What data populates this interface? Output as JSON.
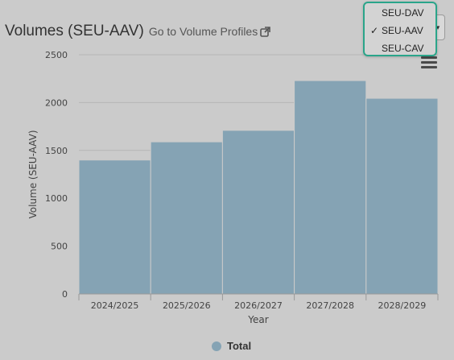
{
  "header": {
    "title": "Volumes (SEU-AAV)",
    "link_text": "Go to Volume Profiles"
  },
  "dropdown": {
    "options": [
      {
        "label": "SEU-DAV",
        "selected": false
      },
      {
        "label": "SEU-AAV",
        "selected": true
      },
      {
        "label": "SEU-CAV",
        "selected": false
      }
    ],
    "check_glyph": "✓",
    "border_color": "#2aa58a"
  },
  "legend": {
    "label": "Total"
  },
  "colors": {
    "series": "#85a3b4",
    "background": "#cbcbcb"
  },
  "chart_data": {
    "type": "bar",
    "categories": [
      "2024/2025",
      "2025/2026",
      "2026/2027",
      "2027/2028",
      "2028/2029"
    ],
    "series": [
      {
        "name": "Total",
        "values": [
          1400,
          1590,
          1710,
          2230,
          2045
        ]
      }
    ],
    "xlabel": "Year",
    "ylabel": "Volume (SEU-AAV)",
    "ylim": [
      0,
      2500
    ],
    "yticks": [
      0,
      500,
      1000,
      1500,
      2000,
      2500
    ],
    "grid": true,
    "legend_position": "bottom-center"
  }
}
